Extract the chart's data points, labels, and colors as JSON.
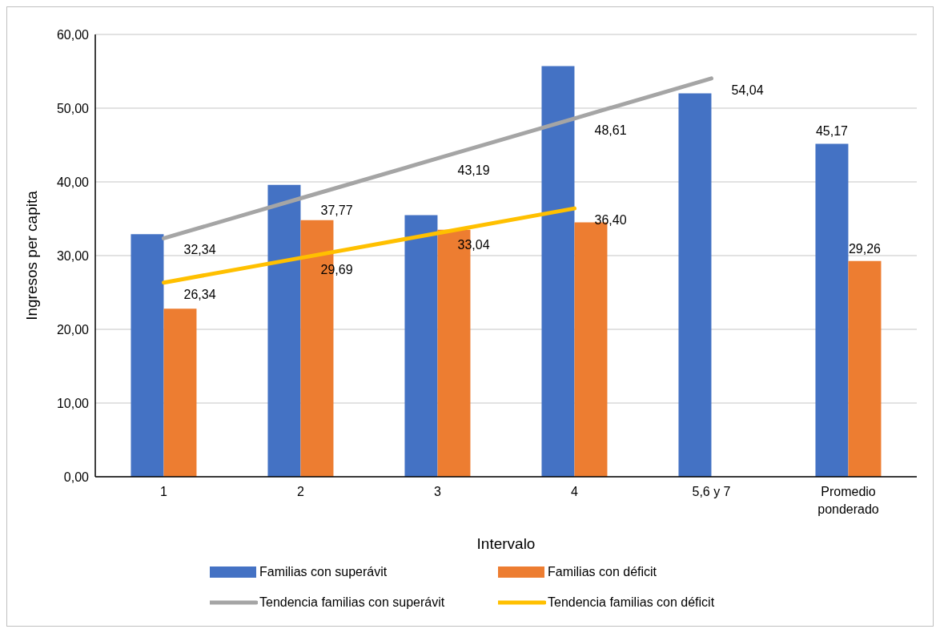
{
  "chart_data": {
    "type": "bar",
    "xlabel": "Intervalo",
    "ylabel": "Ingresos per capita",
    "categories": [
      "1",
      "2",
      "3",
      "4",
      "5,6 y 7",
      "Promedio ponderado"
    ],
    "series": [
      {
        "name": "Familias con superávit",
        "color": "#4472c4",
        "values": [
          32.9,
          39.6,
          35.5,
          55.7,
          52.0,
          45.17
        ],
        "value_labels": [
          null,
          null,
          null,
          null,
          null,
          "45,17"
        ]
      },
      {
        "name": "Familias con déficit",
        "color": "#ed7d31",
        "values": [
          22.8,
          34.8,
          33.5,
          34.5,
          null,
          29.26
        ],
        "value_labels": [
          null,
          null,
          null,
          null,
          null,
          "29,26"
        ]
      },
      {
        "name": "Tendencia familias con superávit",
        "type": "line",
        "color": "#a5a5a5",
        "values": [
          32.34,
          37.77,
          43.19,
          48.61,
          54.04,
          null
        ],
        "value_labels": [
          "32,34",
          "37,77",
          "43,19",
          "48,61",
          "54,04",
          null
        ]
      },
      {
        "name": "Tendencia familias con déficit",
        "type": "line",
        "color": "#ffc000",
        "values": [
          26.34,
          29.69,
          33.04,
          36.4,
          null,
          null
        ],
        "value_labels": [
          "26,34",
          "29,69",
          "33,04",
          "36,40",
          null,
          null
        ]
      }
    ],
    "ylim": [
      0,
      60
    ],
    "yticks": [
      {
        "value": 0,
        "label": "0,00"
      },
      {
        "value": 10,
        "label": "10,00"
      },
      {
        "value": 20,
        "label": "20,00"
      },
      {
        "value": 30,
        "label": "30,00"
      },
      {
        "value": 40,
        "label": "40,00"
      },
      {
        "value": 50,
        "label": "50,00"
      },
      {
        "value": 60,
        "label": "60,00"
      }
    ],
    "grid": "y",
    "legend": "bottom",
    "marker": "none",
    "line_style": "solid"
  }
}
